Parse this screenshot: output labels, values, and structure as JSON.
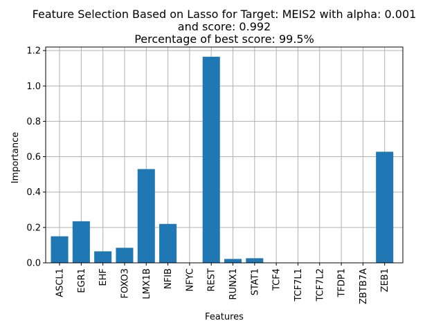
{
  "chart_data": {
    "type": "bar",
    "title_lines": [
      "Feature Selection Based on Lasso for Target: MEIS2 with alpha: 0.001",
      "and score: 0.992",
      "Percentage of best score: 99.5%"
    ],
    "xlabel": "Features",
    "ylabel": "Importance",
    "categories": [
      "ASCL1",
      "EGR1",
      "EHF",
      "FOXO3",
      "LMX1B",
      "NFIB",
      "NFYC",
      "REST",
      "RUNX1",
      "STAT1",
      "TCF4",
      "TCF7L1",
      "TCF7L2",
      "TFDP1",
      "ZBTB7A",
      "ZEB1"
    ],
    "values": [
      0.15,
      0.235,
      0.065,
      0.085,
      0.53,
      0.22,
      0.0,
      1.165,
      0.022,
      0.026,
      0.0,
      0.0,
      0.0,
      0.0,
      0.0,
      0.628
    ],
    "ylim": [
      0,
      1.22
    ],
    "yticks": [
      0.0,
      0.2,
      0.4,
      0.6,
      0.8,
      1.0,
      1.2
    ],
    "ytick_labels": [
      "0.0",
      "0.2",
      "0.4",
      "0.6",
      "0.8",
      "1.0",
      "1.2"
    ],
    "grid": true,
    "bar_color": "#1f77b4"
  }
}
